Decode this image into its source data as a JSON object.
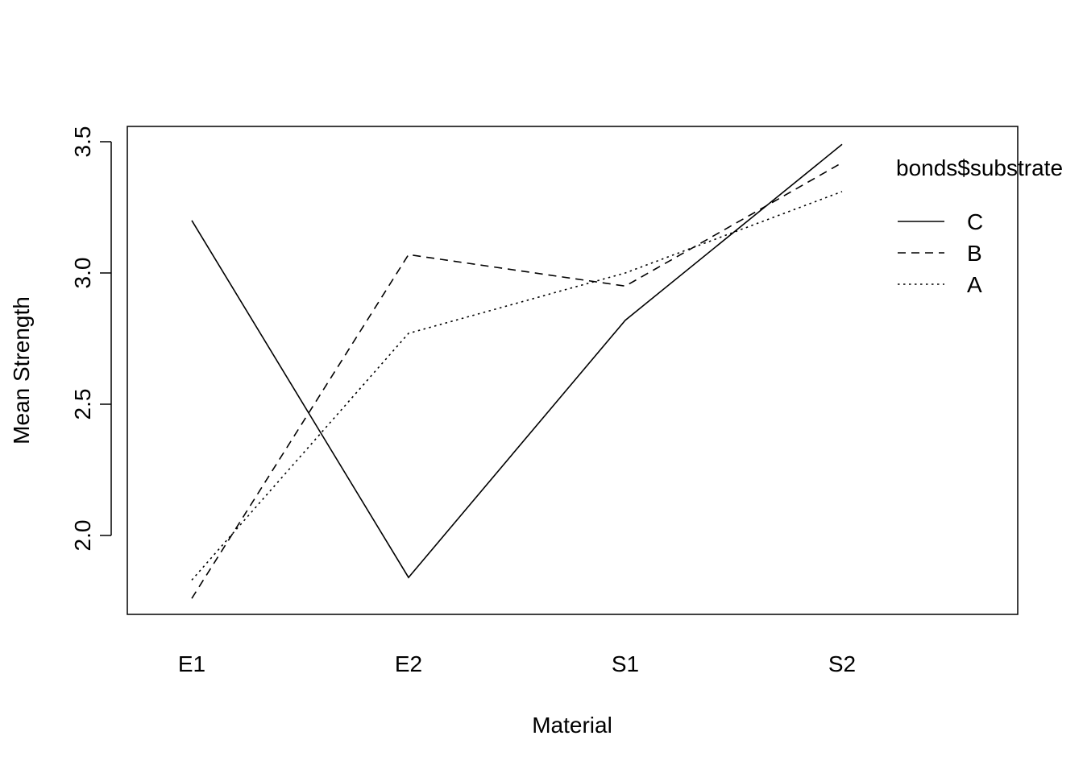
{
  "chart_data": {
    "type": "line",
    "title": "",
    "xlabel": "Material",
    "ylabel": "Mean Strength",
    "categories": [
      "E1",
      "E2",
      "S1",
      "S2"
    ],
    "ylim": [
      1.7,
      3.56
    ],
    "yticks": [
      "2.0",
      "2.5",
      "3.0",
      "3.5"
    ],
    "ytick_values": [
      2.0,
      2.5,
      3.0,
      3.5
    ],
    "grid": false,
    "legend": {
      "title": "bonds$substrate",
      "position": "top-right"
    },
    "series": [
      {
        "name": "C",
        "values": [
          3.2,
          1.84,
          2.82,
          3.49
        ],
        "dash": "solid"
      },
      {
        "name": "B",
        "values": [
          1.76,
          3.07,
          2.95,
          3.42
        ],
        "dash": "dashed"
      },
      {
        "name": "A",
        "values": [
          1.83,
          2.77,
          3.0,
          3.31
        ],
        "dash": "dotted"
      }
    ],
    "colors": {
      "line": "#000000",
      "background": "#ffffff"
    }
  }
}
